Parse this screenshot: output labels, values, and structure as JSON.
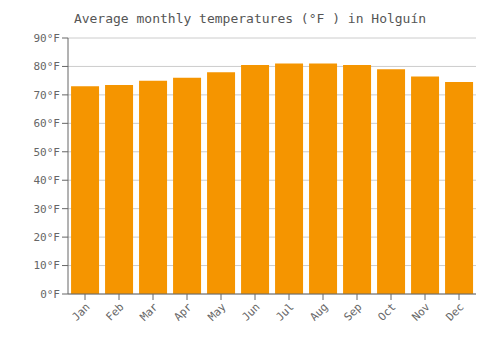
{
  "chart_data": {
    "type": "bar",
    "title": "Average monthly temperatures (°F ) in Holguín",
    "categories": [
      "Jan",
      "Feb",
      "Mar",
      "Apr",
      "May",
      "Jun",
      "Jul",
      "Aug",
      "Sep",
      "Oct",
      "Nov",
      "Dec"
    ],
    "values": [
      73.0,
      73.5,
      75.0,
      76.0,
      78.0,
      80.5,
      81.0,
      81.0,
      80.5,
      79.0,
      76.5,
      74.5
    ],
    "color": "#F59500",
    "ylim": [
      0,
      90
    ],
    "yticks": [
      {
        "value": 0,
        "label": "0°F"
      },
      {
        "value": 10,
        "label": "10°F"
      },
      {
        "value": 20,
        "label": "20°F"
      },
      {
        "value": 30,
        "label": "30°F"
      },
      {
        "value": 40,
        "label": "40°F"
      },
      {
        "value": 50,
        "label": "50°F"
      },
      {
        "value": 60,
        "label": "60°F"
      },
      {
        "value": 70,
        "label": "70°F"
      },
      {
        "value": 80,
        "label": "80°F"
      },
      {
        "value": 90,
        "label": "90°F"
      }
    ],
    "grid": true
  }
}
